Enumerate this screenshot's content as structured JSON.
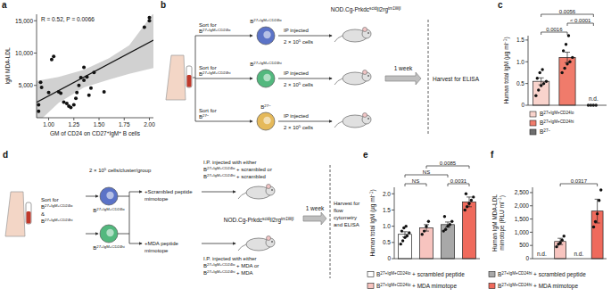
{
  "chart_data": [
    {
      "panel": "a",
      "type": "scatter",
      "marker": "circle",
      "color": "#111111",
      "x": [
        0.9,
        0.9,
        0.92,
        0.93,
        1.0,
        1.03,
        1.05,
        1.1,
        1.12,
        1.15,
        1.18,
        1.2,
        1.22,
        1.25,
        1.27,
        1.28,
        1.3,
        1.32,
        1.35,
        1.35,
        1.38,
        1.4,
        1.42,
        1.45,
        1.55,
        1.95,
        2.0,
        2.0
      ],
      "values": [
        2000,
        1000,
        5500,
        4700,
        3900,
        9000,
        9500,
        4000,
        3800,
        2400,
        2200,
        1800,
        1600,
        2000,
        3000,
        3900,
        5000,
        6200,
        7800,
        5800,
        6300,
        3500,
        4600,
        7000,
        4000,
        14000,
        15000,
        15500
      ],
      "trend": {
        "x": [
          0.88,
          2.04
        ],
        "values": [
          2400,
          12000
        ],
        "color": "#111111"
      },
      "band": {
        "x": [
          0.88,
          1.1,
          1.35,
          1.6,
          1.8,
          2.04
        ],
        "lower": [
          -900,
          2300,
          4700,
          5900,
          6800,
          7700
        ],
        "upper": [
          5700,
          6300,
          7400,
          9200,
          11200,
          16200
        ],
        "color": "#bdbdbd"
      },
      "annotation": "R = 0.52, P = 0.0066",
      "x_label": [
        [
          {
            "t": "GM of CD24 on CD27"
          },
          {
            "sup": "+"
          },
          {
            "t": "IgM"
          },
          {
            "sup": "+"
          },
          {
            "t": " B cells"
          }
        ]
      ],
      "y_label": [
        [
          {
            "t": "IgM MDA-LDL"
          }
        ]
      ],
      "xlim": [
        0.88,
        2.04
      ],
      "ylim": [
        0,
        16000
      ],
      "xticks": [
        {
          "value": 1,
          "label": "1.00"
        },
        {
          "value": 1.25,
          "label": "1.25"
        },
        {
          "value": 1.5,
          "label": "1.50"
        },
        {
          "value": 1.75,
          "label": "1.75"
        },
        {
          "value": 2,
          "label": "2.00"
        }
      ],
      "yticks": [
        {
          "value": 5000,
          "label": "5,000"
        },
        {
          "value": 10000,
          "label": "10,000"
        },
        {
          "value": 15000,
          "label": "15,000"
        }
      ]
    },
    {
      "panel": "c",
      "type": "bar",
      "categories": [
        null,
        null,
        null
      ],
      "tick_labels": "y",
      "values": [
        0.55,
        1.1,
        null
      ],
      "errors": [
        0.08,
        0.12,
        null
      ],
      "points": [
        [
          0.22,
          0.35,
          0.45,
          0.5,
          0.55,
          0.62,
          0.75,
          0.82
        ],
        [
          0.75,
          0.85,
          0.95,
          1.0,
          1.1,
          1.25,
          1.4,
          1.6
        ],
        [
          0,
          0,
          0,
          0
        ]
      ],
      "colors": [
        "#f9d3cc",
        "#f07b6b",
        "#6e6e6e"
      ],
      "missing_label": "n.d.",
      "y_label": [
        [
          {
            "t": "Human total IgM (µg ml"
          },
          {
            "sup": "−1"
          },
          {
            "t": ")"
          }
        ]
      ],
      "ylim": [
        0,
        1.6
      ],
      "yticks": [
        0,
        0.5,
        {
          "value": 1,
          "label": "1.0"
        },
        1.5
      ],
      "comparisons": [
        {
          "from": 0,
          "to": 2,
          "label": "0.0056"
        },
        {
          "from": 1,
          "to": 2,
          "label": "< 0.0001"
        },
        {
          "from": 0,
          "to": 1,
          "label": "0.0016"
        }
      ],
      "legend": "bottom",
      "legend_labels": [
        [
          [
            {
              "t": "B"
            },
            {
              "sup": "27+IgM+CD24lo"
            }
          ]
        ],
        [
          [
            {
              "t": "B"
            },
            {
              "sup": "27+IgM+CD24hi"
            }
          ]
        ],
        [
          [
            {
              "t": "B"
            },
            {
              "sup": "27−"
            }
          ]
        ]
      ]
    },
    {
      "panel": "e",
      "type": "bar",
      "categories": [
        null,
        null,
        null,
        null
      ],
      "tick_labels": "y",
      "values": [
        0.75,
        0.95,
        1.05,
        1.75
      ],
      "errors": [
        0.08,
        0.1,
        0.08,
        0.15
      ],
      "points": [
        [
          0.45,
          0.55,
          0.65,
          0.7,
          0.8,
          0.85,
          0.95,
          1.0
        ],
        [
          0.75,
          0.85,
          1.0,
          1.15
        ],
        [
          0.85,
          0.9,
          1.0,
          1.05,
          1.15,
          1.3
        ],
        [
          1.5,
          1.6,
          1.7,
          1.8,
          1.9,
          2.0
        ]
      ],
      "colors": [
        "#ffffff",
        "#f7c4bf",
        "#a8a8a8",
        "#ef6a5c"
      ],
      "y_label": [
        [
          {
            "t": "Human total IgM (µg ml"
          },
          {
            "sup": "−1"
          },
          {
            "t": ")"
          }
        ]
      ],
      "ylim": [
        0,
        2.2
      ],
      "yticks": [
        0,
        0.5,
        {
          "value": 1,
          "label": "1.0"
        },
        1.5,
        {
          "value": 2,
          "label": "2.0"
        }
      ],
      "comparisons": [
        {
          "from": 0,
          "to": 2,
          "label": "NS"
        },
        {
          "from": 1,
          "to": 3,
          "label": "0.0085"
        },
        {
          "from": 0,
          "to": 1,
          "label": "NS"
        },
        {
          "from": 2,
          "to": 3,
          "label": "0.0031"
        }
      ],
      "legend": "bottom",
      "legend_labels": [
        [
          [
            {
              "t": "B"
            },
            {
              "sup": "27+IgM+CD24lo"
            },
            {
              "t": " + scrambled peptide"
            }
          ]
        ],
        [
          [
            {
              "t": "B"
            },
            {
              "sup": "27+IgM+CD24lo"
            },
            {
              "t": " + MDA mimotope"
            }
          ]
        ],
        [
          [
            {
              "t": "B"
            },
            {
              "sup": "27+IgM+CD24hi"
            },
            {
              "t": " + scrambled peptide"
            }
          ]
        ],
        [
          [
            {
              "t": "B"
            },
            {
              "sup": "27+IgM+CD24hi"
            },
            {
              "t": " + MDA mimotope"
            }
          ]
        ]
      ]
    },
    {
      "panel": "f",
      "type": "bar",
      "categories": [
        null,
        null,
        null,
        null
      ],
      "tick_labels": "y",
      "values": [
        null,
        650,
        null,
        1800
      ],
      "errors": [
        null,
        120,
        null,
        450
      ],
      "points": [
        [],
        [
          450,
          550,
          600,
          700,
          850
        ],
        [],
        [
          1200,
          1400,
          1700,
          2200,
          2600
        ]
      ],
      "colors": [
        "#ffffff",
        "#f7c4bf",
        "#a8a8a8",
        "#ef6a5c"
      ],
      "missing_label": "n.d.",
      "y_label": [
        [
          {
            "t": "Human IgM MDA-LDL"
          }
        ],
        [
          {
            "t": "mimotope (RLU ml"
          },
          {
            "sup": "−1"
          },
          {
            "t": ")"
          }
        ]
      ],
      "ylim": [
        0,
        2700
      ],
      "yticks": [
        0,
        500,
        {
          "value": 1000,
          "label": "1,000"
        },
        {
          "value": 1500,
          "label": "1,500"
        },
        {
          "value": 2000,
          "label": "2,000"
        },
        {
          "value": 2500,
          "label": "2,500"
        }
      ],
      "comparisons": [
        {
          "from": 1,
          "to": 3,
          "label": "0.0317"
        }
      ]
    }
  ],
  "diagrams": {
    "b": {
      "letter": "b",
      "sorts": [
        [
          [
            {
              "t": "Sort for"
            }
          ],
          [
            {
              "t": "B"
            },
            {
              "sup": "27+IgM+CD24lo"
            }
          ]
        ],
        [
          [
            {
              "t": "Sort for"
            }
          ],
          [
            {
              "t": "B"
            },
            {
              "sup": "27+IgM+CD24hi"
            }
          ]
        ],
        [
          [
            {
              "t": "Sort for"
            }
          ],
          [
            {
              "t": "B"
            },
            {
              "sup": "27−"
            }
          ]
        ]
      ],
      "cells": [
        [
          [
            {
              "t": "B"
            },
            {
              "sup": "27+IgM+CD24lo"
            }
          ]
        ],
        [
          [
            {
              "t": "B"
            },
            {
              "sup": "27+IgM+CD24hi"
            }
          ]
        ],
        [
          [
            {
              "t": "B"
            },
            {
              "sup": "27−"
            }
          ]
        ]
      ],
      "injections": [
        {
          "text": [
            [
              {
                "t": "IP injected"
              }
            ]
          ],
          "dose": [
            [
              {
                "t": "2 × 10"
              },
              {
                "sup": "5"
              },
              {
                "t": " cells"
              }
            ]
          ]
        },
        {
          "text": [
            [
              {
                "t": "IP injected"
              }
            ]
          ],
          "dose": [
            [
              {
                "t": "2 × 10"
              },
              {
                "sup": "5"
              },
              {
                "t": " cells"
              }
            ]
          ]
        },
        {
          "text": [
            [
              {
                "t": "IP injected"
              }
            ]
          ],
          "dose": [
            [
              {
                "t": "2 × 10"
              },
              {
                "sup": "5"
              },
              {
                "t": " cells"
              }
            ]
          ]
        }
      ],
      "mouse": [
        [
          {
            "t": "NOD.Cg-Prkdc"
          },
          {
            "sup": "scid"
          },
          {
            "t": "Il2rg"
          },
          {
            "sup": "tm1Wjl"
          }
        ]
      ],
      "interval": [
        [
          {
            "t": "1 week"
          }
        ]
      ],
      "harvest": [
        [
          {
            "t": "Harvest for ELISA"
          }
        ]
      ]
    },
    "d": {
      "letter": "d",
      "dose": [
        [
          {
            "t": "2 × 10"
          },
          {
            "sup": "5"
          },
          {
            "t": " cells/cluster/group"
          }
        ]
      ],
      "sort": [
        [
          {
            "t": "Sort for"
          }
        ],
        [
          {
            "t": "B"
          },
          {
            "sup": "27+IgM+CD24lo"
          }
        ],
        [
          {
            "t": "&"
          }
        ],
        [
          {
            "t": "B"
          },
          {
            "sup": "27+IgM+CD24hi"
          }
        ]
      ],
      "cells": [
        [
          [
            {
              "t": "B"
            },
            {
              "sup": "27+IgM+CD24lo"
            }
          ]
        ],
        [
          [
            {
              "t": "B"
            },
            {
              "sup": "27+IgM+CD24hi"
            }
          ]
        ]
      ],
      "treatments": [
        [
          [
            {
              "t": "+Scrambled peptide"
            }
          ],
          [
            {
              "t": "mimotope"
            }
          ]
        ],
        [
          [
            {
              "t": "+MDA peptide"
            }
          ],
          [
            {
              "t": "mimotope"
            }
          ]
        ]
      ],
      "injections": [
        [
          [
            {
              "t": "I.P. injected with either"
            }
          ],
          [
            {
              "t": "B"
            },
            {
              "sup": "27+IgM+CD24lo"
            },
            {
              "t": " + scrambled or"
            }
          ],
          [
            {
              "t": "B"
            },
            {
              "sup": "27+IgM+CD24hi"
            },
            {
              "t": " + scrambled"
            }
          ]
        ],
        [
          [
            {
              "t": "I.P. injected with either"
            }
          ],
          [
            {
              "t": "B"
            },
            {
              "sup": "27+IgM+CD24lo"
            },
            {
              "t": " + MDA or"
            }
          ],
          [
            {
              "t": "B"
            },
            {
              "sup": "27+IgM+CD24hi"
            },
            {
              "t": " + MDA"
            }
          ]
        ]
      ],
      "mouse": [
        [
          {
            "t": "NOD.Cg-Prkdc"
          },
          {
            "sup": "scid"
          },
          {
            "t": "Il2rg"
          },
          {
            "sup": "tm1Wjl"
          }
        ]
      ],
      "interval": [
        [
          {
            "t": "1 week"
          }
        ]
      ],
      "harvest": [
        [
          {
            "t": "Harvest for"
          }
        ],
        [
          {
            "t": "flow"
          }
        ],
        [
          {
            "t": "cytometry"
          }
        ],
        [
          {
            "t": "and ELISA"
          }
        ]
      ]
    }
  }
}
